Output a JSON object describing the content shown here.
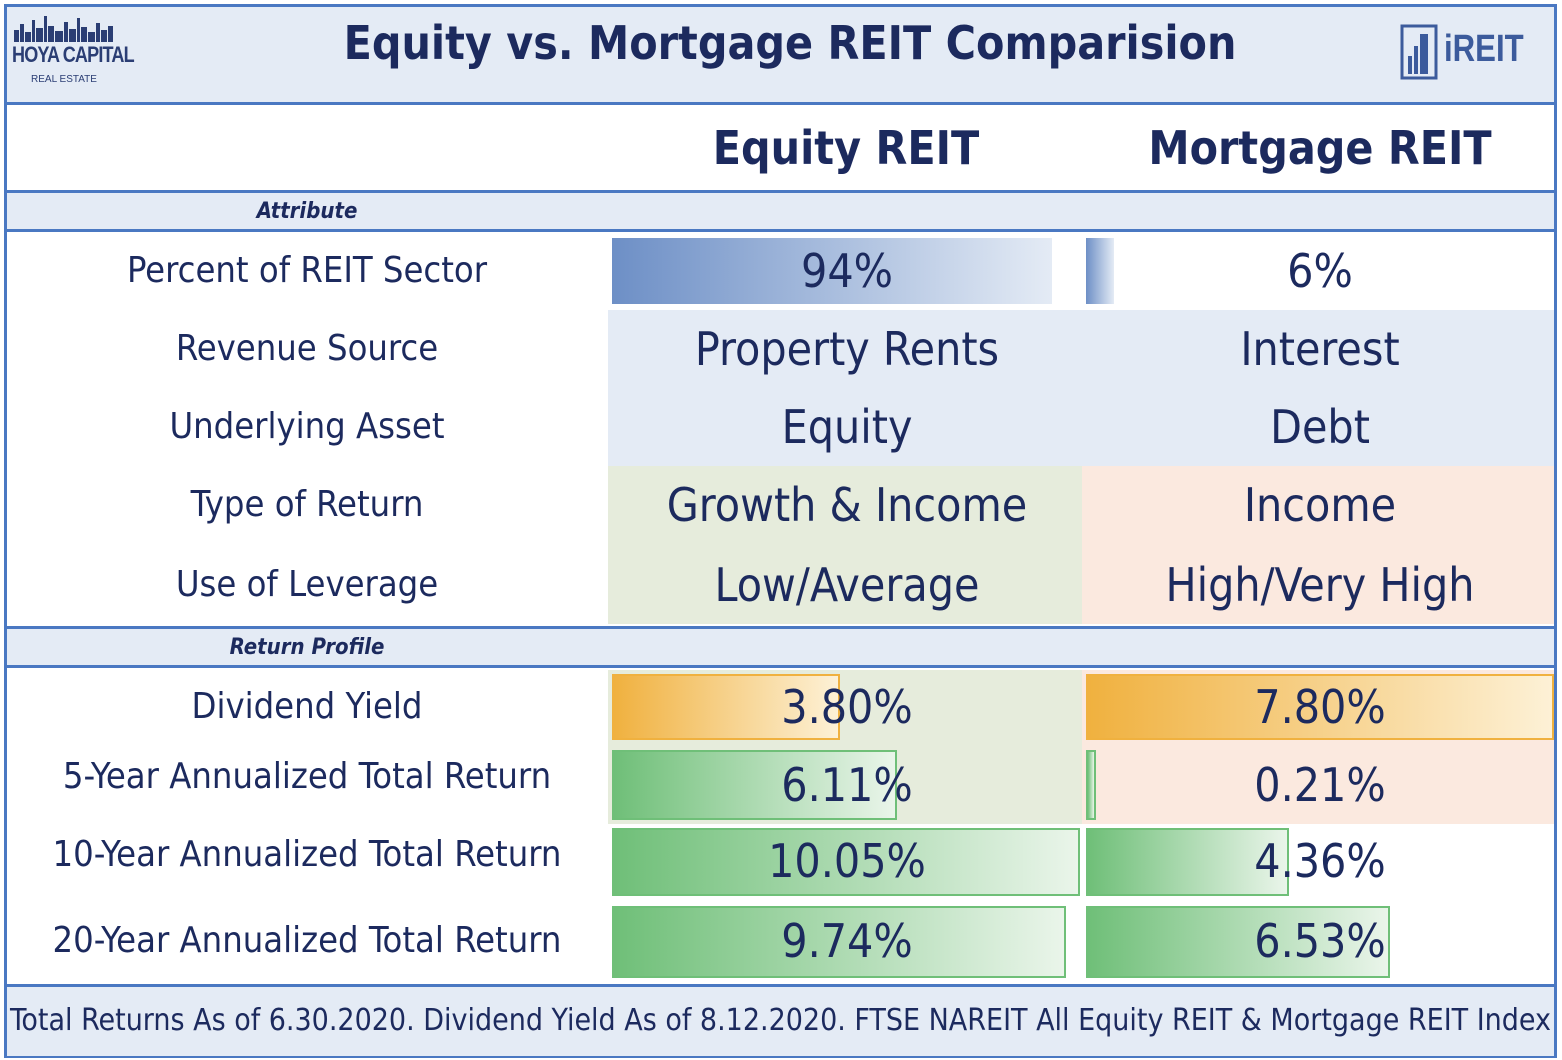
{
  "header": {
    "title": "Equity vs. Mortgage REIT Comparision",
    "left_logo": "HOYA CAPITAL",
    "left_logo_sub": "REAL ESTATE",
    "right_logo": "iREIT"
  },
  "columns": [
    "Equity REIT",
    "Mortgage REIT"
  ],
  "sections": {
    "attribute": "Attribute",
    "return_profile": "Return Profile"
  },
  "colors": {
    "frame": "#4a78c2",
    "header_fill": "#e4ebf5",
    "text": "#1c2a5e",
    "blue_bar": "#6d8fc6",
    "equity_bg_light_green": "#e6ecdc",
    "mortgage_bg_peach": "#fbe9df",
    "orange_bar": "#f0b13f",
    "green_bar": "#6fbf78"
  },
  "chart_data": {
    "type": "table",
    "attributes": [
      {
        "label": "Percent of REIT Sector",
        "equity": "94%",
        "mortgage": "6%",
        "equity_fraction": 0.94,
        "mortgage_fraction": 0.06
      },
      {
        "label": "Revenue Source",
        "equity": "Property Rents",
        "mortgage": "Interest"
      },
      {
        "label": "Underlying Asset",
        "equity": "Equity",
        "mortgage": "Debt"
      },
      {
        "label": "Type of Return",
        "equity": "Growth & Income",
        "mortgage": "Income"
      },
      {
        "label": "Use of Leverage",
        "equity": "Low/Average",
        "mortgage": "High/Very High"
      }
    ],
    "returns": [
      {
        "label": "Dividend Yield",
        "equity": "3.80%",
        "mortgage": "7.80%",
        "equity_value": 3.8,
        "mortgage_value": 7.8
      },
      {
        "label": "5-Year Annualized Total Return",
        "equity": "6.11%",
        "mortgage": "0.21%",
        "equity_value": 6.11,
        "mortgage_value": 0.21
      },
      {
        "label": "10-Year Annualized Total Return",
        "equity": "10.05%",
        "mortgage": "4.36%",
        "equity_value": 10.05,
        "mortgage_value": 4.36
      },
      {
        "label": "20-Year Annualized Total Return",
        "equity": "9.74%",
        "mortgage": "6.53%",
        "equity_value": 9.74,
        "mortgage_value": 6.53
      }
    ]
  },
  "footer": "Total Returns As of 6.30.2020. Dividend Yield As of 8.12.2020. FTSE NAREIT All Equity REIT & Mortgage REIT Index"
}
